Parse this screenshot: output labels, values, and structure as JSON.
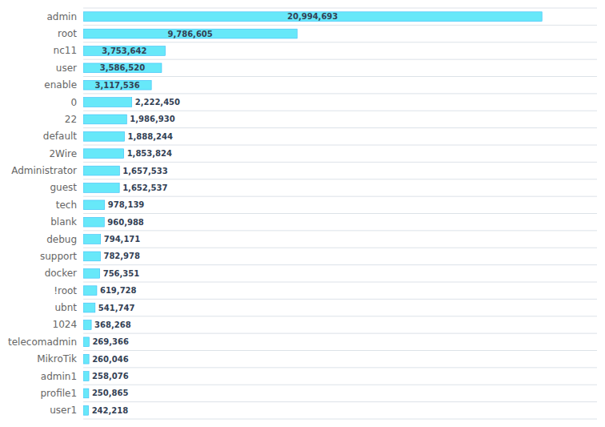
{
  "chart_data": {
    "type": "bar",
    "orientation": "horizontal",
    "categories": [
      "admin",
      "root",
      "nc11",
      "user",
      "enable",
      "0",
      "22",
      "default",
      "2Wire",
      "Administrator",
      "guest",
      "tech",
      "blank",
      "debug",
      "support",
      "docker",
      "!root",
      "ubnt",
      "1024",
      "telecomadmin",
      "MikroTik",
      "admin1",
      "profile1",
      "user1"
    ],
    "values": [
      20994693,
      9786605,
      3753642,
      3586520,
      3117536,
      2222450,
      1986930,
      1888244,
      1853824,
      1657533,
      1652537,
      978139,
      960988,
      794171,
      782978,
      756351,
      619728,
      541747,
      368268,
      269366,
      260046,
      258076,
      250865,
      242218
    ],
    "value_labels": [
      "20,994,693",
      "9,786,605",
      "3,753,642",
      "3,586,520",
      "3,117,536",
      "2,222,450",
      "1,986,930",
      "1,888,244",
      "1,853,824",
      "1,657,533",
      "1,652,537",
      "978,139",
      "960,988",
      "794,171",
      "782,978",
      "756,351",
      "619,728",
      "541,747",
      "368,268",
      "269,366",
      "260,046",
      "258,076",
      "250,865",
      "242,218"
    ],
    "color": "#67e8f9",
    "xlim": [
      0,
      23514056.16
    ],
    "data_labels": true,
    "tick_labels": "y"
  }
}
